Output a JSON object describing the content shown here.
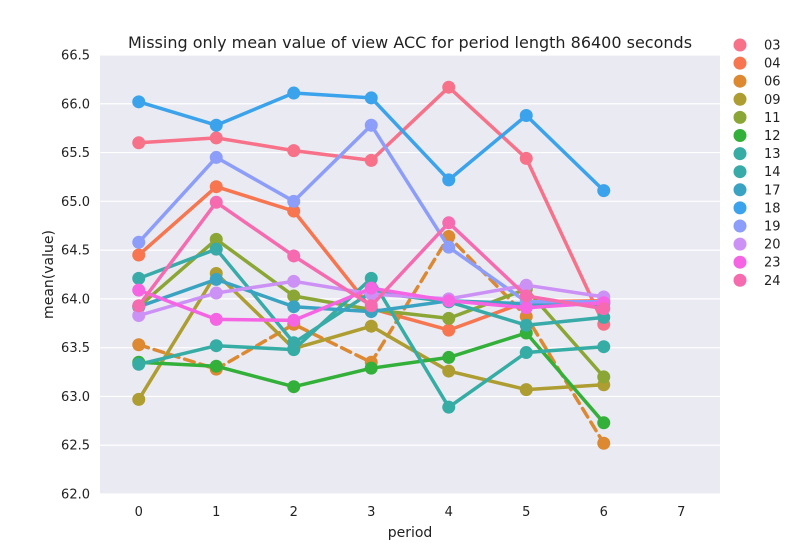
{
  "chart_data": {
    "type": "line",
    "title": "Missing only mean value of view ACC for period length 86400 seconds",
    "xlabel": "period",
    "ylabel": "mean(value)",
    "x_ticks": [
      "0",
      "1",
      "2",
      "3",
      "4",
      "5",
      "6",
      "7"
    ],
    "y_ticks": [
      "62.0",
      "62.5",
      "63.0",
      "63.5",
      "64.0",
      "64.5",
      "65.0",
      "65.5",
      "66.0",
      "66.5"
    ],
    "xlim": [
      -0.5,
      7.5
    ],
    "ylim": [
      62.0,
      66.5
    ],
    "grid": true,
    "legend_position": "outside-right",
    "series": [
      {
        "name": "03",
        "color": "#f77189",
        "dashed": false,
        "x": [
          0,
          1,
          2,
          3,
          4,
          5,
          6
        ],
        "values": [
          65.6,
          65.65,
          65.52,
          65.42,
          66.17,
          65.44,
          63.74
        ]
      },
      {
        "name": "04",
        "color": "#f7754f",
        "dashed": false,
        "x": [
          0,
          1,
          2,
          3,
          4,
          5,
          6
        ],
        "values": [
          64.45,
          65.15,
          64.9,
          63.9,
          63.68,
          63.97,
          63.98
        ]
      },
      {
        "name": "06",
        "color": "#dc8932",
        "dashed": true,
        "x": [
          0,
          1,
          2,
          3,
          4,
          5,
          6
        ],
        "values": [
          63.53,
          63.28,
          63.74,
          63.35,
          64.64,
          63.82,
          62.52
        ]
      },
      {
        "name": "09",
        "color": "#ae9d31",
        "dashed": false,
        "x": [
          0,
          1,
          2,
          3,
          4,
          5,
          6
        ],
        "values": [
          62.97,
          64.26,
          63.49,
          63.72,
          63.26,
          63.07,
          63.12
        ]
      },
      {
        "name": "11",
        "color": "#8ba634",
        "dashed": false,
        "x": [
          0,
          1,
          2,
          3,
          4,
          5,
          6
        ],
        "values": [
          63.92,
          64.61,
          64.03,
          63.89,
          63.8,
          64.1,
          63.2
        ]
      },
      {
        "name": "12",
        "color": "#33b039",
        "dashed": false,
        "x": [
          0,
          1,
          2,
          3,
          4,
          5,
          6
        ],
        "values": [
          63.35,
          63.31,
          63.1,
          63.29,
          63.4,
          63.65,
          62.73
        ]
      },
      {
        "name": "13",
        "color": "#36ada4",
        "dashed": false,
        "x": [
          0,
          1,
          2,
          3,
          4,
          5,
          6
        ],
        "values": [
          63.33,
          63.52,
          63.48,
          64.21,
          62.89,
          63.45,
          63.51
        ]
      },
      {
        "name": "14",
        "color": "#38aba9",
        "dashed": false,
        "x": [
          0,
          1,
          2,
          3,
          4,
          5,
          6
        ],
        "values": [
          64.21,
          64.51,
          63.55,
          64.07,
          63.97,
          63.73,
          63.81
        ]
      },
      {
        "name": "17",
        "color": "#3ba3c2",
        "dashed": false,
        "x": [
          0,
          1,
          2,
          3,
          4,
          5,
          6
        ],
        "values": [
          63.92,
          64.2,
          63.92,
          63.87,
          63.98,
          63.95,
          63.95
        ]
      },
      {
        "name": "18",
        "color": "#3ba3ec",
        "dashed": false,
        "x": [
          0,
          1,
          2,
          3,
          4,
          5,
          6
        ],
        "values": [
          66.02,
          65.78,
          66.11,
          66.06,
          65.22,
          65.88,
          65.11
        ]
      },
      {
        "name": "19",
        "color": "#8c9dfa",
        "dashed": false,
        "x": [
          0,
          1,
          2,
          3,
          4,
          5,
          6
        ],
        "values": [
          64.58,
          65.45,
          65.0,
          65.78,
          64.53,
          63.97,
          63.97
        ]
      },
      {
        "name": "20",
        "color": "#cc91f5",
        "dashed": false,
        "x": [
          0,
          1,
          2,
          3,
          4,
          5,
          6
        ],
        "values": [
          63.83,
          64.06,
          64.18,
          64.05,
          64.0,
          64.14,
          64.02
        ]
      },
      {
        "name": "23",
        "color": "#f564e3",
        "dashed": false,
        "x": [
          0,
          1,
          2,
          3,
          4,
          5,
          6
        ],
        "values": [
          64.09,
          63.79,
          63.78,
          64.11,
          63.98,
          63.91,
          63.96
        ]
      },
      {
        "name": "24",
        "color": "#f66bb0",
        "dashed": false,
        "x": [
          0,
          1,
          2,
          3,
          4,
          5,
          6
        ],
        "values": [
          63.93,
          64.99,
          64.44,
          63.93,
          64.78,
          64.03,
          63.9
        ]
      }
    ]
  }
}
